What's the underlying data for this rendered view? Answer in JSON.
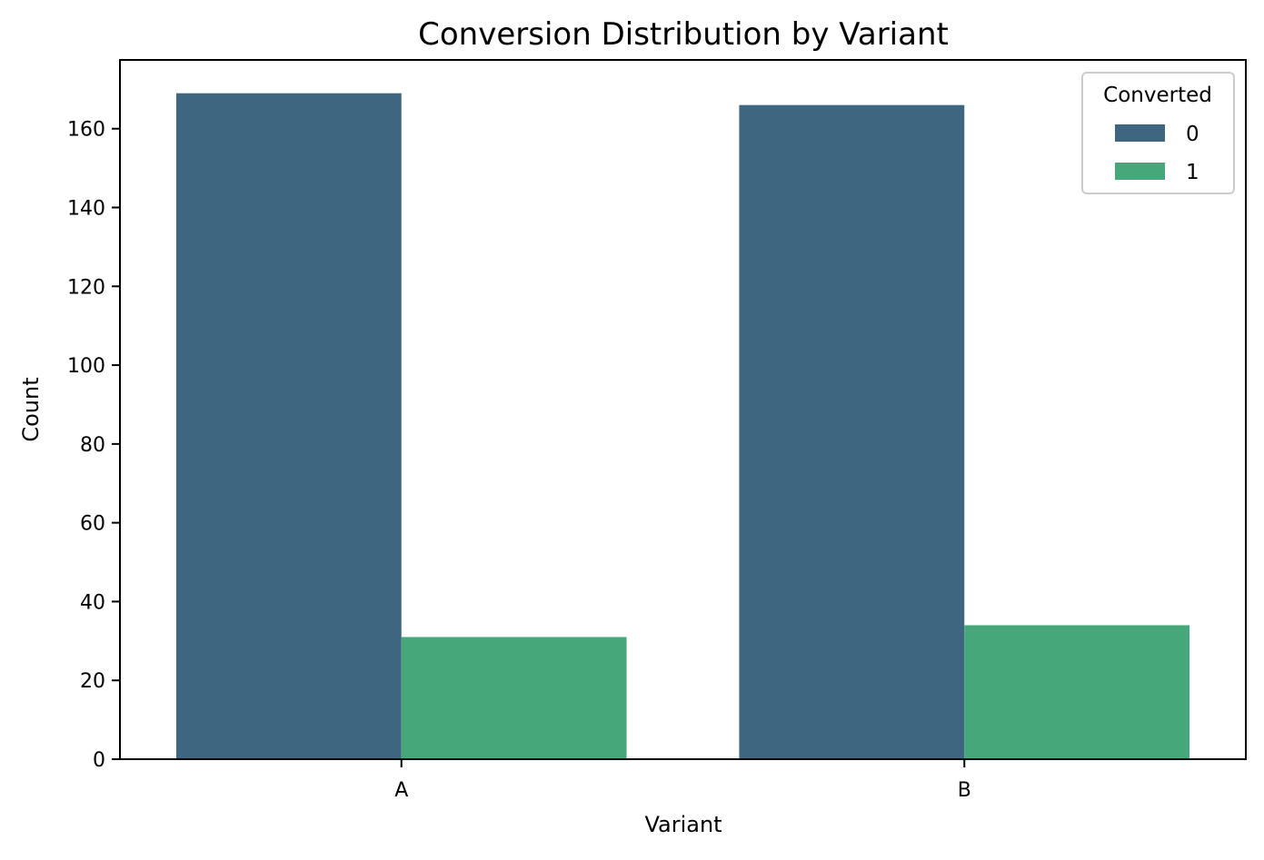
{
  "chart_data": {
    "type": "bar",
    "title": "Conversion Distribution by Variant",
    "xlabel": "Variant",
    "ylabel": "Count",
    "categories": [
      "A",
      "B"
    ],
    "series": [
      {
        "name": "0",
        "values": [
          169,
          166
        ],
        "color": "#3e6680"
      },
      {
        "name": "1",
        "values": [
          31,
          34
        ],
        "color": "#46a87a"
      }
    ],
    "ylim": [
      0,
      177.45
    ],
    "yticks": [
      0,
      20,
      40,
      60,
      80,
      100,
      120,
      140,
      160
    ],
    "legend": {
      "title": "Converted",
      "placement": "top-right"
    },
    "grid": false
  }
}
